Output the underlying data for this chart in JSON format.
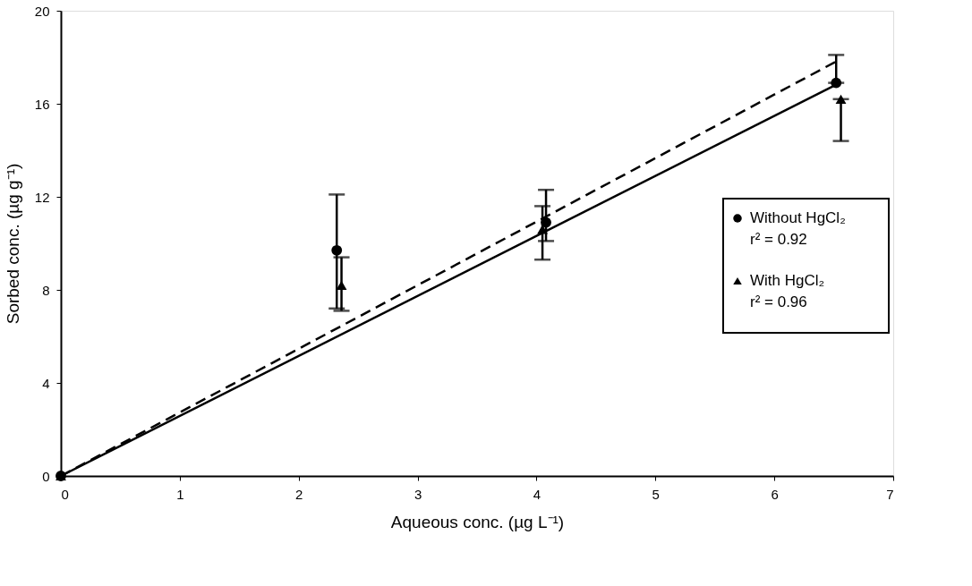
{
  "chart_data": {
    "type": "scatter",
    "xlabel": "Aqueous conc. (µg L⁻¹)",
    "ylabel": "Sorbed conc. (µg g⁻¹)",
    "xlim": [
      0,
      7
    ],
    "xticks": [
      0,
      1,
      2,
      3,
      4,
      5,
      6,
      7
    ],
    "ylim": [
      0,
      20
    ],
    "yticks": [
      0,
      4,
      8,
      12,
      16,
      20
    ],
    "grid": false,
    "legend": "right",
    "series": [
      {
        "name": "Without HgCl₂",
        "marker": "circle",
        "color": "#000000",
        "x": [
          0,
          2.32,
          4.08,
          6.52
        ],
        "values": [
          0,
          9.7,
          10.9,
          16.9
        ],
        "errors": [
          null,
          [
            7.2,
            12.1
          ],
          [
            10.1,
            12.3
          ],
          [
            16.9,
            18.1
          ]
        ]
      },
      {
        "name": "With HgCl₂",
        "marker": "triangle",
        "color": "#000000",
        "x": [
          0,
          2.36,
          4.05,
          6.56
        ],
        "values": [
          0,
          8.2,
          10.6,
          16.2
        ],
        "errors": [
          null,
          [
            7.1,
            9.4
          ],
          [
            9.3,
            11.6
          ],
          [
            14.4,
            16.2
          ]
        ]
      },
      {
        "type": "line",
        "line_style": "solid",
        "color": "#000000",
        "x": [
          0,
          6.55
        ],
        "values": [
          0,
          16.9
        ]
      },
      {
        "type": "line",
        "line_style": "dashed",
        "color": "#000000",
        "x": [
          0,
          6.55
        ],
        "values": [
          0,
          17.9
        ]
      }
    ],
    "annotations": [
      "r² = 0.92",
      "r² = 0.96"
    ]
  }
}
